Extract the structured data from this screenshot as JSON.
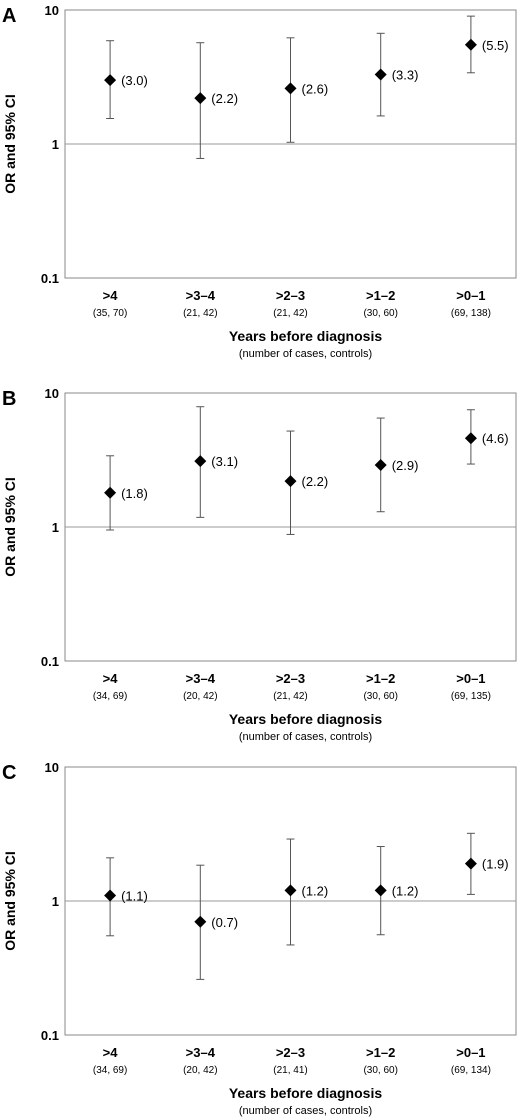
{
  "chart_data": [
    {
      "panel_label": "A",
      "type": "scatter",
      "ylabel": "OR and 95% CI",
      "xlabel": "Years before diagnosis",
      "xlabel_sub": "(number of cases, controls)",
      "y_scale": "log",
      "ylim": [
        0.1,
        10
      ],
      "y_ticks": [
        "0.1",
        "1",
        "10"
      ],
      "reference_line": 1,
      "categories": [
        ">4",
        ">3–4",
        ">2–3",
        ">1–2",
        ">0–1"
      ],
      "sublabels": [
        "(35, 70)",
        "(21, 42)",
        "(21, 42)",
        "(30, 60)",
        "(69, 138)"
      ],
      "or": [
        3.0,
        2.2,
        2.6,
        3.3,
        5.5
      ],
      "ci_lower": [
        1.55,
        0.78,
        1.03,
        1.62,
        3.4
      ],
      "ci_upper": [
        5.9,
        5.7,
        6.2,
        6.7,
        9.0
      ],
      "value_labels": [
        "(3.0)",
        "(2.2)",
        "(2.6)",
        "(3.3)",
        "(5.5)"
      ]
    },
    {
      "panel_label": "B",
      "type": "scatter",
      "ylabel": "OR and 95% CI",
      "xlabel": "Years before diagnosis",
      "xlabel_sub": "(number of cases, controls)",
      "y_scale": "log",
      "ylim": [
        0.1,
        10
      ],
      "y_ticks": [
        "0.1",
        "1",
        "10"
      ],
      "reference_line": 1,
      "categories": [
        ">4",
        ">3–4",
        ">2–3",
        ">1–2",
        ">0–1"
      ],
      "sublabels": [
        "(34, 69)",
        "(20, 42)",
        "(21, 42)",
        "(30, 60)",
        "(69, 135)"
      ],
      "or": [
        1.8,
        3.1,
        2.2,
        2.9,
        4.6
      ],
      "ci_lower": [
        0.95,
        1.18,
        0.88,
        1.3,
        2.95
      ],
      "ci_upper": [
        3.4,
        7.9,
        5.2,
        6.5,
        7.5
      ],
      "value_labels": [
        "(1.8)",
        "(3.1)",
        "(2.2)",
        "(2.9)",
        "(4.6)"
      ]
    },
    {
      "panel_label": "C",
      "type": "scatter",
      "ylabel": "OR and 95% CI",
      "xlabel": "Years before diagnosis",
      "xlabel_sub": "(number of cases, controls)",
      "y_scale": "log",
      "ylim": [
        0.1,
        10
      ],
      "y_ticks": [
        "0.1",
        "1",
        "10"
      ],
      "reference_line": 1,
      "categories": [
        ">4",
        ">3–4",
        ">2–3",
        ">1–2",
        ">0–1"
      ],
      "sublabels": [
        "(34, 69)",
        "(20, 42)",
        "(21, 41)",
        "(30, 60)",
        "(69, 134)"
      ],
      "or": [
        1.1,
        0.7,
        1.2,
        1.2,
        1.9
      ],
      "ci_lower": [
        0.55,
        0.26,
        0.47,
        0.56,
        1.12
      ],
      "ci_upper": [
        2.1,
        1.85,
        2.9,
        2.55,
        3.2
      ],
      "value_labels": [
        "(1.1)",
        "(0.7)",
        "(1.2)",
        "(1.2)",
        "(1.9)"
      ]
    }
  ]
}
